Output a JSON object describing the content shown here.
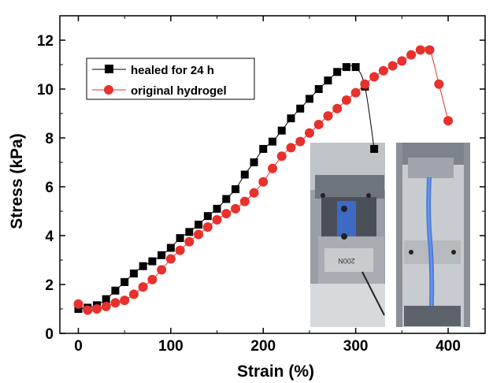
{
  "chart_data": {
    "type": "line",
    "xlabel": "Strain (%)",
    "ylabel": "Stress (kPa)",
    "xlim": [
      -20,
      440
    ],
    "ylim": [
      0,
      13
    ],
    "x_ticks": [
      0,
      100,
      200,
      300,
      400
    ],
    "y_ticks": [
      0,
      2,
      4,
      6,
      8,
      10,
      12
    ],
    "grid": false,
    "legend_position": "top-left",
    "series": [
      {
        "name": "healed for 24 h",
        "marker": "square",
        "color": "#000000",
        "x": [
          0,
          10,
          20,
          30,
          40,
          50,
          60,
          70,
          80,
          90,
          100,
          110,
          120,
          130,
          140,
          150,
          160,
          170,
          180,
          190,
          200,
          210,
          220,
          230,
          240,
          250,
          260,
          270,
          280,
          290,
          300,
          310,
          320
        ],
        "y": [
          1.0,
          1.05,
          1.15,
          1.4,
          1.75,
          2.1,
          2.45,
          2.75,
          2.95,
          3.2,
          3.5,
          3.9,
          4.15,
          4.45,
          4.8,
          5.1,
          5.5,
          5.9,
          6.5,
          7.0,
          7.55,
          7.85,
          8.3,
          8.8,
          9.2,
          9.6,
          10.0,
          10.35,
          10.7,
          10.9,
          10.9,
          10.1,
          7.55
        ]
      },
      {
        "name": "original hydrogel",
        "marker": "circle",
        "color": "#e8302c",
        "x": [
          0,
          10,
          20,
          30,
          40,
          50,
          60,
          70,
          80,
          90,
          100,
          110,
          120,
          130,
          140,
          150,
          160,
          170,
          180,
          190,
          200,
          210,
          220,
          230,
          240,
          250,
          260,
          270,
          280,
          290,
          300,
          310,
          320,
          330,
          340,
          350,
          360,
          370,
          380,
          390,
          400
        ],
        "y": [
          1.2,
          0.95,
          1.0,
          1.1,
          1.25,
          1.35,
          1.6,
          1.9,
          2.2,
          2.6,
          3.05,
          3.4,
          3.75,
          4.05,
          4.35,
          4.65,
          4.9,
          5.1,
          5.4,
          5.75,
          6.2,
          6.75,
          7.25,
          7.6,
          7.85,
          8.2,
          8.55,
          8.9,
          9.2,
          9.55,
          9.85,
          10.2,
          10.5,
          10.75,
          10.95,
          11.15,
          11.4,
          11.6,
          11.6,
          10.2,
          8.7
        ]
      }
    ]
  },
  "inset_photos": [
    {
      "label_text": "200N"
    },
    {
      "label_text": ""
    }
  ]
}
